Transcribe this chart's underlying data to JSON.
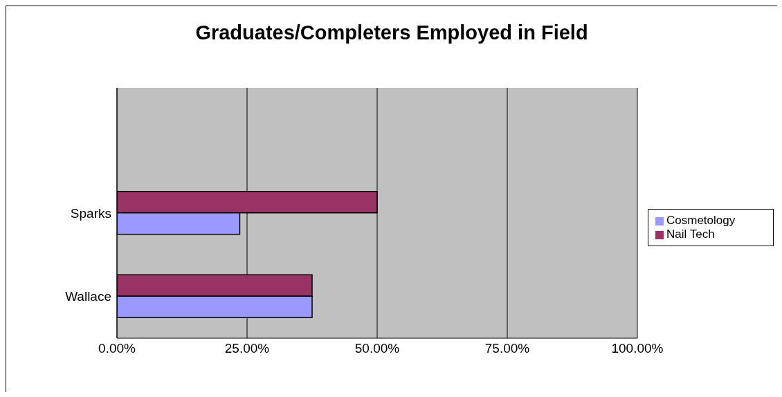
{
  "chart_data": {
    "type": "bar",
    "orientation": "horizontal",
    "title": "Graduates/Completers Employed in Field",
    "categories": [
      null,
      "Sparks",
      "Wallace"
    ],
    "series": [
      {
        "name": "Nail Tech",
        "color": "#993366",
        "values": [
          null,
          50,
          37.5
        ]
      },
      {
        "name": "Cosmetology",
        "color": "#9999ff",
        "values": [
          null,
          23.6,
          37.5
        ]
      }
    ],
    "xlim": [
      0,
      100
    ],
    "xticks": [
      {
        "value": 0,
        "label": "0.00%"
      },
      {
        "value": 25,
        "label": "25.00%"
      },
      {
        "value": 50,
        "label": "50.00%"
      },
      {
        "value": 75,
        "label": "75.00%"
      },
      {
        "value": 100,
        "label": "100.00%"
      }
    ],
    "grid": "x",
    "legend": "right"
  }
}
